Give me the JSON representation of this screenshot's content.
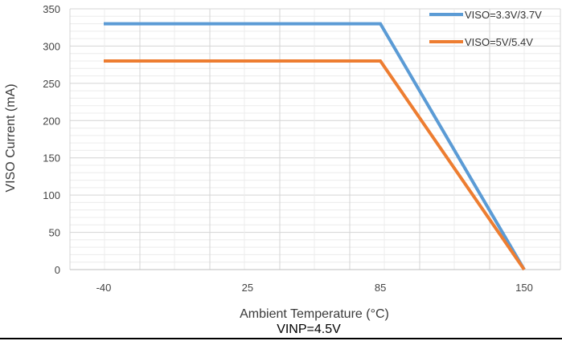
{
  "chart_data": {
    "type": "line",
    "title": "",
    "xlabel": "Ambient Temperature (°C)",
    "ylabel": "VISO Current (mA)",
    "caption": "VINP=4.5V",
    "x_ticks": [
      "-40",
      "25",
      "85",
      "150"
    ],
    "x_range": [
      -40,
      150
    ],
    "ylim": [
      0,
      350
    ],
    "y_ticks": [
      "0",
      "50",
      "100",
      "150",
      "200",
      "250",
      "300",
      "350"
    ],
    "grid": true,
    "legend_position": "top-right",
    "series": [
      {
        "name": "VISO=3.3V/3.7V",
        "color": "#5B9BD5",
        "points": [
          [
            -40,
            330
          ],
          [
            85,
            330
          ],
          [
            150,
            0
          ]
        ]
      },
      {
        "name": "VISO=5V/5.4V",
        "color": "#ED7D31",
        "points": [
          [
            -40,
            280
          ],
          [
            85,
            280
          ],
          [
            150,
            0
          ]
        ]
      }
    ]
  }
}
